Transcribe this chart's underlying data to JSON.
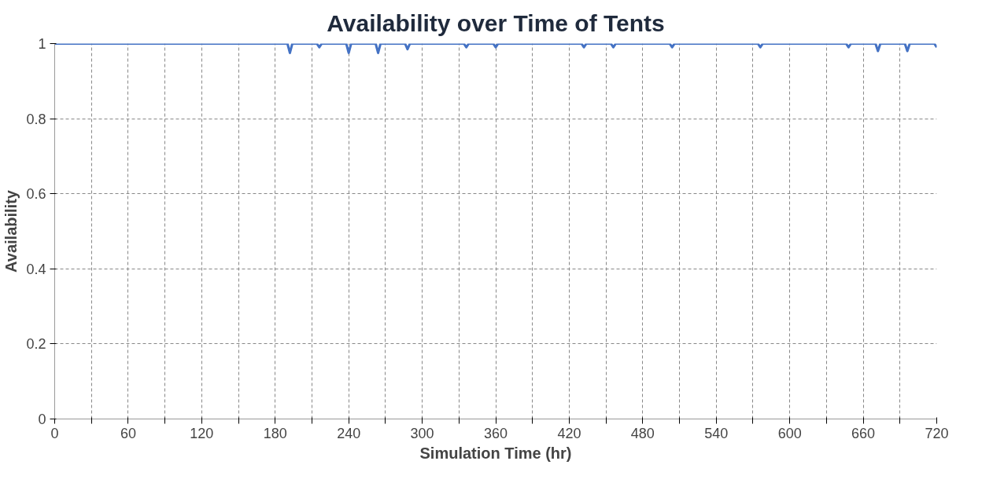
{
  "chart_data": {
    "type": "line",
    "title": "Availability over Time of Tents",
    "xlabel": "Simulation Time (hr)",
    "ylabel": "Availability",
    "x": [
      0,
      190,
      192,
      194,
      214,
      216,
      218,
      238,
      240,
      242,
      262,
      264,
      266,
      286,
      288,
      290,
      334,
      336,
      338,
      358,
      360,
      362,
      430,
      432,
      434,
      454,
      456,
      458,
      502,
      504,
      506,
      574,
      576,
      578,
      646,
      648,
      650,
      670,
      672,
      674,
      694,
      696,
      698,
      718,
      720
    ],
    "series": [
      {
        "color": "#4472c4",
        "values": [
          1,
          1,
          0.975,
          1,
          1,
          0.99,
          1,
          1,
          0.975,
          1,
          1,
          0.975,
          1,
          1,
          0.985,
          1,
          1,
          0.99,
          1,
          1,
          0.99,
          1,
          1,
          0.99,
          1,
          1,
          0.99,
          1,
          1,
          0.99,
          1,
          1,
          0.99,
          1,
          1,
          0.99,
          1,
          1,
          0.98,
          1,
          1,
          0.98,
          1,
          1,
          0.99
        ]
      }
    ],
    "xlim": [
      0,
      720
    ],
    "ylim": [
      0,
      1
    ],
    "xticks": [
      0,
      {
        "value": 30,
        "label": null
      },
      60,
      {
        "value": 90,
        "label": null
      },
      120,
      {
        "value": 150,
        "label": null
      },
      180,
      {
        "value": 210,
        "label": null
      },
      240,
      {
        "value": 270,
        "label": null
      },
      300,
      {
        "value": 330,
        "label": null
      },
      360,
      {
        "value": 390,
        "label": null
      },
      420,
      {
        "value": 450,
        "label": null
      },
      480,
      {
        "value": 510,
        "label": null
      },
      540,
      {
        "value": 570,
        "label": null
      },
      600,
      {
        "value": 630,
        "label": null
      },
      660,
      {
        "value": 690,
        "label": null
      },
      720
    ],
    "yticks": [
      0,
      0.2,
      0.4,
      0.6,
      0.8,
      1
    ],
    "grid": true,
    "line_style": "solid"
  }
}
